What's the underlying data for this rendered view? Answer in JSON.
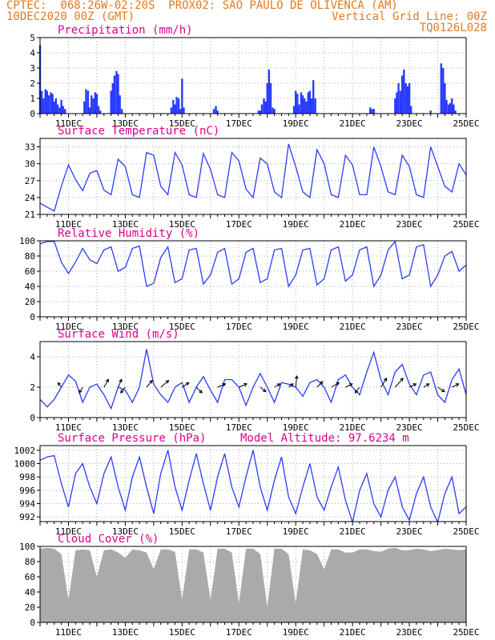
{
  "header": {
    "line1_left": "CPTEC:  068:26W-02:20S  PROX02: SAO PAULO DE OLIVENCA (AM)",
    "line2_left": "10DEC2020 00Z (GMT)",
    "line2_right": "Vertical Grid Line: 00Z",
    "line3_right": "TQ0126L028",
    "color": "#e07a1f"
  },
  "colors": {
    "title": "#e0008a",
    "line": "#2a3cff",
    "bar": "#2a3cff",
    "cloud": "#aaaaaa",
    "grid": "#aaaaaa",
    "arrow": "#000000"
  },
  "x_ticks": [
    "11DEC",
    "13DEC",
    "15DEC",
    "17DEC",
    "19DEC",
    "21DEC",
    "23DEC",
    "25DEC"
  ],
  "model_altitude": "Model Altitude: 97.6234 m",
  "chart_data": [
    {
      "type": "bar",
      "title": "Precipitation (mm/h)",
      "ylim": [
        0,
        5
      ],
      "yticks": [
        "0",
        "1",
        "2",
        "3",
        "4",
        "5"
      ],
      "x_day": [
        10.0,
        10.06,
        10.12,
        10.19,
        10.25,
        10.31,
        10.38,
        10.44,
        10.5,
        10.56,
        10.62,
        10.69,
        10.75,
        10.81,
        10.88,
        11.56,
        11.62,
        11.69,
        11.75,
        11.81,
        11.88,
        11.94,
        12.0,
        12.06,
        12.12,
        12.5,
        12.56,
        12.62,
        12.69,
        12.75,
        12.81,
        12.88,
        14.62,
        14.69,
        14.75,
        14.81,
        14.88,
        14.94,
        15.0,
        15.06,
        16.12,
        16.19,
        16.25,
        17.69,
        17.75,
        17.81,
        17.88,
        17.94,
        18.0,
        18.06,
        18.12,
        18.19,
        18.25,
        18.94,
        19.0,
        19.06,
        19.12,
        19.19,
        19.25,
        19.31,
        19.38,
        19.44,
        19.5,
        19.56,
        19.62,
        19.69,
        21.62,
        21.69,
        21.75,
        22.5,
        22.56,
        22.62,
        22.69,
        22.75,
        22.81,
        22.88,
        22.94,
        23.0,
        23.06,
        23.75,
        24.12,
        24.19,
        24.25,
        24.31,
        24.38,
        24.44,
        24.5,
        24.56,
        24.62
      ],
      "values": [
        4.5,
        1.5,
        1.0,
        1.6,
        1.5,
        1.2,
        1.4,
        1.3,
        0.8,
        1.0,
        0.6,
        0.4,
        0.9,
        0.5,
        0.3,
        0.8,
        1.6,
        1.5,
        0.4,
        1.2,
        1.0,
        1.4,
        1.3,
        0.5,
        0.2,
        1.5,
        2.0,
        2.5,
        2.8,
        2.6,
        1.2,
        0.3,
        0.4,
        0.9,
        0.6,
        1.1,
        1.0,
        0.3,
        2.3,
        0.4,
        0.3,
        0.5,
        0.2,
        0.2,
        0.2,
        0.6,
        1.0,
        0.8,
        2.0,
        2.9,
        2.0,
        0.4,
        0.3,
        0.5,
        1.5,
        1.3,
        0.6,
        1.4,
        1.2,
        1.0,
        0.8,
        1.4,
        1.5,
        1.0,
        2.2,
        1.0,
        0.4,
        0.3,
        0.3,
        1.0,
        1.4,
        2.0,
        1.5,
        2.5,
        2.9,
        2.0,
        1.8,
        2.0,
        0.5,
        0.2,
        3.3,
        3.0,
        2.0,
        0.9,
        0.6,
        0.7,
        1.0,
        0.6,
        0.2
      ]
    },
    {
      "type": "line",
      "title": "Surface Temperature (nC)",
      "ylim": [
        21,
        34.5
      ],
      "yticks": [
        "21",
        "24",
        "27",
        "30",
        "33"
      ],
      "x_day": [
        10.0,
        10.25,
        10.5,
        10.75,
        11.0,
        11.25,
        11.5,
        11.75,
        12.0,
        12.25,
        12.5,
        12.75,
        13.0,
        13.25,
        13.5,
        13.75,
        14.0,
        14.25,
        14.5,
        14.75,
        15.0,
        15.25,
        15.5,
        15.75,
        16.0,
        16.25,
        16.5,
        16.75,
        17.0,
        17.25,
        17.5,
        17.75,
        18.0,
        18.25,
        18.5,
        18.75,
        19.0,
        19.25,
        19.5,
        19.75,
        20.0,
        20.25,
        20.5,
        20.75,
        21.0,
        21.25,
        21.5,
        21.75,
        22.0,
        22.25,
        22.5,
        22.75,
        23.0,
        23.25,
        23.5,
        23.75,
        24.0,
        24.25,
        24.5,
        24.75,
        25.0
      ],
      "values": [
        23.0,
        22.3,
        21.6,
        26.0,
        29.8,
        27.2,
        25.2,
        28.3,
        28.8,
        25.3,
        24.5,
        30.8,
        29.5,
        24.5,
        24.0,
        32.0,
        31.5,
        26.0,
        24.5,
        32.0,
        29.8,
        24.5,
        24.0,
        31.8,
        29.0,
        24.5,
        24.0,
        32.0,
        30.5,
        25.5,
        24.0,
        31.0,
        30.0,
        25.0,
        24.0,
        33.5,
        29.5,
        25.0,
        24.0,
        32.5,
        30.0,
        24.5,
        24.0,
        31.5,
        29.8,
        24.5,
        24.5,
        33.0,
        29.5,
        25.0,
        24.5,
        31.5,
        29.5,
        24.5,
        24.0,
        33.0,
        29.5,
        26.0,
        25.0,
        30.0,
        28.0
      ]
    },
    {
      "type": "line",
      "title": "Relative Humidity (%)",
      "ylim": [
        0,
        100
      ],
      "yticks": [
        "0",
        "20",
        "40",
        "60",
        "80",
        "100"
      ],
      "x_day": [
        10.0,
        10.25,
        10.5,
        10.75,
        11.0,
        11.25,
        11.5,
        11.75,
        12.0,
        12.25,
        12.5,
        12.75,
        13.0,
        13.25,
        13.5,
        13.75,
        14.0,
        14.25,
        14.5,
        14.75,
        15.0,
        15.25,
        15.5,
        15.75,
        16.0,
        16.25,
        16.5,
        16.75,
        17.0,
        17.25,
        17.5,
        17.75,
        18.0,
        18.25,
        18.5,
        18.75,
        19.0,
        19.25,
        19.5,
        19.75,
        20.0,
        20.25,
        20.5,
        20.75,
        21.0,
        21.25,
        21.5,
        21.75,
        22.0,
        22.25,
        22.5,
        22.75,
        23.0,
        23.25,
        23.5,
        23.75,
        24.0,
        24.25,
        24.5,
        24.75,
        25.0
      ],
      "values": [
        96,
        99,
        99,
        72,
        57,
        72,
        90,
        75,
        70,
        88,
        92,
        60,
        65,
        90,
        93,
        40,
        44,
        78,
        92,
        45,
        50,
        88,
        90,
        43,
        55,
        85,
        90,
        43,
        50,
        85,
        90,
        45,
        50,
        88,
        90,
        40,
        55,
        88,
        90,
        42,
        50,
        88,
        92,
        47,
        55,
        88,
        92,
        40,
        55,
        88,
        99,
        50,
        55,
        92,
        95,
        40,
        55,
        80,
        86,
        60,
        68
      ]
    },
    {
      "type": "line",
      "title": "Surface Wind (m/s)",
      "ylim": [
        0,
        5
      ],
      "yticks": [
        "0",
        "2",
        "4"
      ],
      "x_day": [
        10.0,
        10.25,
        10.5,
        10.75,
        11.0,
        11.25,
        11.5,
        11.75,
        12.0,
        12.25,
        12.5,
        12.75,
        13.0,
        13.25,
        13.5,
        13.75,
        14.0,
        14.25,
        14.5,
        14.75,
        15.0,
        15.25,
        15.5,
        15.75,
        16.0,
        16.25,
        16.5,
        16.75,
        17.0,
        17.25,
        17.5,
        17.75,
        18.0,
        18.25,
        18.5,
        18.75,
        19.0,
        19.25,
        19.5,
        19.75,
        20.0,
        20.25,
        20.5,
        20.75,
        21.0,
        21.25,
        21.5,
        21.75,
        22.0,
        22.25,
        22.5,
        22.75,
        23.0,
        23.25,
        23.5,
        23.75,
        24.0,
        24.25,
        24.5,
        24.75,
        25.0
      ],
      "values": [
        1.2,
        0.7,
        1.2,
        2.0,
        2.8,
        2.4,
        1.0,
        2.0,
        2.2,
        1.5,
        0.6,
        2.0,
        1.8,
        1.0,
        2.0,
        4.5,
        2.2,
        1.5,
        1.0,
        2.0,
        2.3,
        1.0,
        2.0,
        2.7,
        1.8,
        1.0,
        2.5,
        2.5,
        2.0,
        0.8,
        2.0,
        2.9,
        2.0,
        1.0,
        2.3,
        2.2,
        2.0,
        1.4,
        2.3,
        2.5,
        2.0,
        1.0,
        2.5,
        2.8,
        2.0,
        1.5,
        3.0,
        4.3,
        2.5,
        1.5,
        3.0,
        3.5,
        2.2,
        1.5,
        2.8,
        3.0,
        1.5,
        1.0,
        2.5,
        3.2,
        1.5
      ],
      "arrows_day": [
        10.75,
        11.5,
        12.25,
        12.75,
        13.0,
        13.75,
        14.25,
        15.0,
        15.5,
        16.25,
        17.0,
        17.75,
        18.25,
        18.75,
        19.0,
        19.75,
        20.25,
        20.75,
        21.25,
        22.0,
        22.5,
        23.0,
        23.5,
        24.0,
        24.5
      ],
      "arrows_u": [
        -0.3,
        -0.3,
        0.4,
        0.3,
        -0.4,
        0.5,
        0.7,
        0.6,
        0.5,
        0.7,
        0.7,
        0.5,
        0.5,
        0.4,
        0.1,
        0.5,
        0.7,
        0.6,
        -0.4,
        0.5,
        0.7,
        0.6,
        0.5,
        0.6,
        0.6
      ],
      "arrows_v": [
        0.4,
        -0.5,
        0.7,
        0.7,
        -0.5,
        0.6,
        0.6,
        0.4,
        -0.5,
        0.3,
        0.3,
        -0.4,
        0.3,
        0.3,
        1.0,
        0.5,
        0.4,
        0.3,
        -0.5,
        0.8,
        0.8,
        0.3,
        0.3,
        -0.4,
        0.3
      ]
    },
    {
      "type": "line",
      "title": "Surface Pressure (hPa)",
      "ylim": [
        991.3,
        1002.7
      ],
      "yticks": [
        "992",
        "994",
        "996",
        "998",
        "1000",
        "1002"
      ],
      "x_day": [
        10.0,
        10.25,
        10.5,
        10.75,
        11.0,
        11.25,
        11.5,
        11.75,
        12.0,
        12.25,
        12.5,
        12.75,
        13.0,
        13.25,
        13.5,
        13.75,
        14.0,
        14.25,
        14.5,
        14.75,
        15.0,
        15.25,
        15.5,
        15.75,
        16.0,
        16.25,
        16.5,
        16.75,
        17.0,
        17.25,
        17.5,
        17.75,
        18.0,
        18.25,
        18.5,
        18.75,
        19.0,
        19.25,
        19.5,
        19.75,
        20.0,
        20.25,
        20.5,
        20.75,
        21.0,
        21.25,
        21.5,
        21.75,
        22.0,
        22.25,
        22.5,
        22.75,
        23.0,
        23.25,
        23.5,
        23.75,
        24.0,
        24.25,
        24.5,
        24.75,
        25.0
      ],
      "values": [
        1000.5,
        1001.0,
        1001.2,
        997.0,
        993.5,
        998.5,
        1000.0,
        996.5,
        994.0,
        998.5,
        1001.0,
        996.5,
        993.0,
        998.0,
        1001.0,
        996.5,
        992.5,
        998.5,
        1002.0,
        996.5,
        993.0,
        997.5,
        1001.5,
        997.0,
        993.0,
        998.0,
        1001.5,
        996.5,
        993.5,
        998.0,
        1002.0,
        996.5,
        993.0,
        997.5,
        1001.0,
        995.0,
        992.5,
        996.5,
        1000.0,
        995.0,
        993.0,
        996.5,
        999.5,
        994.5,
        991.2,
        996.0,
        998.5,
        994.0,
        992.0,
        996.0,
        998.0,
        993.5,
        991.5,
        995.5,
        998.0,
        993.5,
        991.2,
        995.5,
        998.0,
        992.5,
        993.5
      ]
    },
    {
      "type": "area",
      "title": "Cloud Cover (%)",
      "ylim": [
        0,
        100
      ],
      "yticks": [
        "0",
        "20",
        "40",
        "60",
        "80",
        "100"
      ],
      "x_day": [
        10.0,
        10.25,
        10.5,
        10.75,
        11.0,
        11.25,
        11.5,
        11.75,
        12.0,
        12.25,
        12.5,
        12.75,
        13.0,
        13.25,
        13.5,
        13.75,
        14.0,
        14.25,
        14.5,
        14.75,
        15.0,
        15.25,
        15.5,
        15.75,
        16.0,
        16.25,
        16.5,
        16.75,
        17.0,
        17.25,
        17.5,
        17.75,
        18.0,
        18.25,
        18.5,
        18.75,
        19.0,
        19.25,
        19.5,
        19.75,
        20.0,
        20.25,
        20.5,
        20.75,
        21.0,
        21.25,
        21.5,
        21.75,
        22.0,
        22.25,
        22.5,
        22.75,
        23.0,
        23.25,
        23.5,
        23.75,
        24.0,
        24.25,
        24.5,
        24.75,
        25.0
      ],
      "values": [
        97,
        98,
        97,
        90,
        30,
        95,
        96,
        95,
        60,
        95,
        96,
        92,
        85,
        96,
        95,
        92,
        70,
        96,
        96,
        93,
        30,
        96,
        96,
        92,
        30,
        97,
        97,
        92,
        25,
        97,
        97,
        90,
        20,
        97,
        97,
        90,
        25,
        96,
        95,
        90,
        70,
        96,
        96,
        92,
        92,
        96,
        96,
        94,
        93,
        97,
        98,
        95,
        95,
        97,
        96,
        94,
        95,
        97,
        96,
        95,
        96
      ]
    }
  ]
}
